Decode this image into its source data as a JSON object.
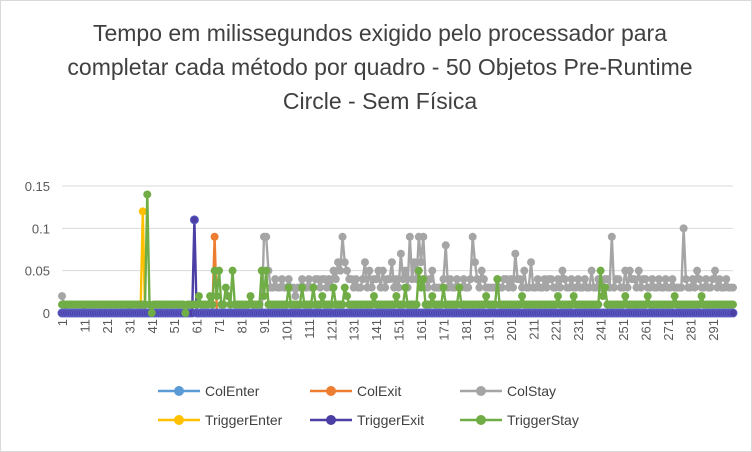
{
  "chart_data": {
    "type": "line",
    "title": "Tempo em milissegundos exigido pelo processador para completar cada método por quadro - 50 Objetos Pre-Runtime Circle - Sem Física",
    "ylim": [
      0,
      0.15
    ],
    "y_ticks": [
      "0",
      "0.05",
      "0.1",
      "0.15"
    ],
    "x_tick_labels": [
      "1",
      "11",
      "21",
      "31",
      "41",
      "51",
      "61",
      "71",
      "81",
      "91",
      "101",
      "111",
      "121",
      "131",
      "141",
      "151",
      "161",
      "171",
      "181",
      "191",
      "201",
      "211",
      "221",
      "231",
      "241",
      "251",
      "261",
      "271",
      "281",
      "291"
    ],
    "x_count": 300,
    "grid": "horizontal",
    "legend_position": "bottom",
    "series": [
      {
        "name": "ColEnter",
        "color": "#5b9bd5",
        "baseline": 0,
        "points": []
      },
      {
        "name": "ColExit",
        "color": "#ed7d31",
        "baseline": 0,
        "points": [
          [
            69,
            0.09
          ]
        ]
      },
      {
        "name": "ColStay",
        "color": "#a5a5a5",
        "baseline": 0.03,
        "points": [
          [
            1,
            0.02
          ],
          [
            2,
            0.01
          ],
          [
            3,
            0
          ],
          [
            10,
            0
          ],
          [
            11,
            0.01
          ],
          [
            12,
            0
          ],
          [
            30,
            0
          ],
          [
            31,
            0.01
          ],
          [
            32,
            0
          ],
          [
            90,
            0
          ],
          [
            91,
            0.09
          ],
          [
            92,
            0.09
          ],
          [
            93,
            0.05
          ],
          [
            94,
            0.03
          ],
          [
            104,
            0.03
          ],
          [
            105,
            0.02
          ],
          [
            110,
            0.03
          ],
          [
            115,
            0.04
          ],
          [
            118,
            0.04
          ],
          [
            122,
            0.05
          ],
          [
            124,
            0.06
          ],
          [
            125,
            0.05
          ],
          [
            126,
            0.09
          ],
          [
            127,
            0.06
          ],
          [
            128,
            0.05
          ],
          [
            130,
            0.04
          ],
          [
            133,
            0.03
          ],
          [
            136,
            0.06
          ],
          [
            138,
            0.05
          ],
          [
            140,
            0.04
          ],
          [
            142,
            0.05
          ],
          [
            144,
            0.05
          ],
          [
            146,
            0.04
          ],
          [
            148,
            0.06
          ],
          [
            150,
            0.04
          ],
          [
            152,
            0.07
          ],
          [
            154,
            0.05
          ],
          [
            156,
            0.09
          ],
          [
            157,
            0.04
          ],
          [
            158,
            0.06
          ],
          [
            160,
            0.09
          ],
          [
            161,
            0.06
          ],
          [
            162,
            0.09
          ],
          [
            163,
            0.04
          ],
          [
            166,
            0.05
          ],
          [
            168,
            0.03
          ],
          [
            172,
            0.08
          ],
          [
            175,
            0.03
          ],
          [
            180,
            0.04
          ],
          [
            184,
            0.09
          ],
          [
            185,
            0.06
          ],
          [
            188,
            0.05
          ],
          [
            192,
            0.03
          ],
          [
            196,
            0.03
          ],
          [
            199,
            0.04
          ],
          [
            203,
            0.07
          ],
          [
            205,
            0.04
          ],
          [
            207,
            0.05
          ],
          [
            210,
            0.06
          ],
          [
            213,
            0.04
          ],
          [
            218,
            0.04
          ],
          [
            224,
            0.05
          ],
          [
            228,
            0.04
          ],
          [
            233,
            0.03
          ],
          [
            237,
            0.05
          ],
          [
            240,
            0.04
          ],
          [
            244,
            0.04
          ],
          [
            246,
            0.09
          ],
          [
            248,
            0.04
          ],
          [
            250,
            0.03
          ],
          [
            252,
            0.05
          ],
          [
            254,
            0.05
          ],
          [
            256,
            0.04
          ],
          [
            258,
            0.05
          ],
          [
            260,
            0.04
          ],
          [
            263,
            0.03
          ],
          [
            267,
            0.04
          ],
          [
            272,
            0.03
          ],
          [
            276,
            0.03
          ],
          [
            278,
            0.1
          ],
          [
            279,
            0.04
          ],
          [
            282,
            0.04
          ],
          [
            284,
            0.05
          ],
          [
            286,
            0.03
          ],
          [
            288,
            0.04
          ],
          [
            290,
            0.03
          ],
          [
            292,
            0.05
          ],
          [
            294,
            0.04
          ],
          [
            296,
            0.03
          ],
          [
            300,
            0.03
          ]
        ]
      },
      {
        "name": "TriggerEnter",
        "color": "#ffc000",
        "baseline": 0,
        "points": [
          [
            37,
            0.12
          ]
        ]
      },
      {
        "name": "TriggerExit",
        "color": "#4b3fa5",
        "baseline": 0,
        "points": [
          [
            60,
            0.11
          ]
        ]
      },
      {
        "name": "TriggerStay",
        "color": "#70ad47",
        "baseline": 0.01,
        "points": [
          [
            38,
            0.01
          ],
          [
            39,
            0.14
          ],
          [
            40,
            0.01
          ],
          [
            41,
            0
          ],
          [
            56,
            0
          ],
          [
            57,
            0.01
          ],
          [
            60,
            0.01
          ],
          [
            62,
            0.02
          ],
          [
            63,
            0.01
          ],
          [
            67,
            0.02
          ],
          [
            69,
            0.05
          ],
          [
            70,
            0.02
          ],
          [
            71,
            0.05
          ],
          [
            72,
            0.01
          ],
          [
            74,
            0.03
          ],
          [
            75,
            0.02
          ],
          [
            77,
            0.05
          ],
          [
            78,
            0.01
          ],
          [
            85,
            0.02
          ],
          [
            86,
            0.01
          ],
          [
            90,
            0.05
          ],
          [
            91,
            0.02
          ],
          [
            92,
            0.05
          ],
          [
            93,
            0.01
          ],
          [
            102,
            0.03
          ],
          [
            103,
            0.01
          ],
          [
            108,
            0.03
          ],
          [
            109,
            0.01
          ],
          [
            113,
            0.03
          ],
          [
            114,
            0.01
          ],
          [
            117,
            0.02
          ],
          [
            118,
            0.01
          ],
          [
            122,
            0.03
          ],
          [
            123,
            0.01
          ],
          [
            127,
            0.03
          ],
          [
            128,
            0.02
          ],
          [
            130,
            0.01
          ],
          [
            140,
            0.02
          ],
          [
            141,
            0.01
          ],
          [
            150,
            0.02
          ],
          [
            151,
            0.01
          ],
          [
            154,
            0.03
          ],
          [
            155,
            0.01
          ],
          [
            160,
            0.05
          ],
          [
            161,
            0.03
          ],
          [
            162,
            0.04
          ],
          [
            163,
            0.01
          ],
          [
            166,
            0.02
          ],
          [
            167,
            0.01
          ],
          [
            171,
            0.03
          ],
          [
            172,
            0.01
          ],
          [
            178,
            0.03
          ],
          [
            179,
            0.01
          ],
          [
            190,
            0.02
          ],
          [
            191,
            0.01
          ],
          [
            195,
            0.04
          ],
          [
            196,
            0.01
          ],
          [
            206,
            0.02
          ],
          [
            207,
            0.01
          ],
          [
            222,
            0.02
          ],
          [
            223,
            0.01
          ],
          [
            229,
            0.02
          ],
          [
            230,
            0.01
          ],
          [
            241,
            0.05
          ],
          [
            242,
            0.02
          ],
          [
            243,
            0.03
          ],
          [
            244,
            0.01
          ],
          [
            252,
            0.02
          ],
          [
            253,
            0.01
          ],
          [
            262,
            0.02
          ],
          [
            263,
            0.01
          ],
          [
            274,
            0.02
          ],
          [
            275,
            0.01
          ],
          [
            286,
            0.02
          ],
          [
            287,
            0.01
          ]
        ]
      }
    ]
  }
}
